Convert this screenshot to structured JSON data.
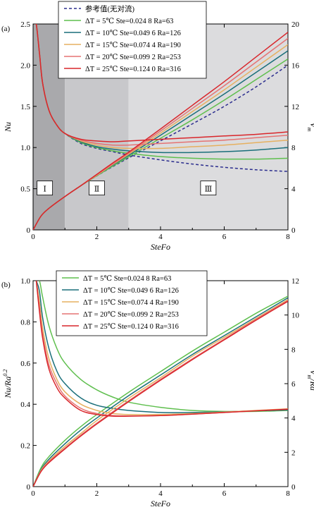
{
  "chart_data": [
    {
      "type": "line",
      "panel_label": "(a)",
      "xlabel": "SteFo",
      "ylabel": "Nu",
      "y2label": "V",
      "y2label_sub": "m",
      "xlim": [
        0,
        8
      ],
      "ylim": [
        0,
        2.5
      ],
      "y2lim": [
        0,
        20
      ],
      "x_ticks": [
        "0",
        "2",
        "4",
        "6",
        "8"
      ],
      "y_ticks": [
        "0",
        "0.5",
        "1.0",
        "1.5",
        "2.0",
        "2.5"
      ],
      "y2_ticks": [
        "0",
        "4",
        "8",
        "12",
        "16",
        "20"
      ],
      "regions": [
        {
          "label": "Ⅰ",
          "x_range": [
            0,
            1
          ],
          "color": "#a9a9ac"
        },
        {
          "label": "Ⅱ",
          "x_range": [
            1,
            3
          ],
          "color": "#c8c8cb"
        },
        {
          "label": "Ⅲ",
          "x_range": [
            3,
            8
          ],
          "color": "#dcdcde"
        }
      ],
      "legend_placement": "top-center",
      "series": [
        {
          "name": "参考值(无对流)",
          "color": "#2b2d8e",
          "dashed": true,
          "nu": {
            "x": [
              0.05,
              0.1,
              0.2,
              0.3,
              0.5,
              0.75,
              1,
              1.5,
              2,
              2.5,
              3,
              4,
              5,
              6,
              7,
              8
            ],
            "y": [
              2.5,
              2.5,
              2.15,
              1.78,
              1.45,
              1.27,
              1.17,
              1.05,
              0.99,
              0.95,
              0.91,
              0.85,
              0.8,
              0.76,
              0.73,
              0.71
            ]
          },
          "vm": {
            "x": [
              0,
              0.25,
              0.5,
              1,
              1.5,
              2,
              2.5,
              3,
              4,
              5,
              6,
              7,
              8
            ],
            "y": [
              0,
              1.35,
              2.1,
              3.25,
              4.3,
              5.25,
              6.15,
              7.0,
              8.65,
              10.3,
              12.0,
              13.9,
              16.0
            ]
          }
        },
        {
          "name": "ΔT = 5℃   Ste=0.024 8   Ra=63",
          "color": "#5fbf4e",
          "dashed": false,
          "nu": {
            "x": [
              0.05,
              0.1,
              0.2,
              0.3,
              0.5,
              0.75,
              1,
              1.5,
              2,
              2.5,
              3,
              4,
              5,
              6,
              7,
              8
            ],
            "y": [
              2.5,
              2.5,
              2.15,
              1.78,
              1.45,
              1.27,
              1.17,
              1.06,
              1.0,
              0.96,
              0.93,
              0.89,
              0.87,
              0.86,
              0.86,
              0.87
            ]
          },
          "vm": {
            "x": [
              0,
              0.25,
              0.5,
              1,
              1.5,
              2,
              2.5,
              3,
              4,
              5,
              6,
              7,
              8
            ],
            "y": [
              0,
              1.35,
              2.1,
              3.25,
              4.3,
              5.25,
              6.2,
              7.1,
              8.9,
              10.7,
              12.6,
              14.6,
              16.6
            ]
          }
        },
        {
          "name": "ΔT = 10℃   Ste=0.049 6   Ra=126",
          "color": "#1a6f7a",
          "dashed": false,
          "nu": {
            "x": [
              0.05,
              0.1,
              0.2,
              0.3,
              0.5,
              0.75,
              1,
              1.5,
              2,
              2.5,
              3,
              4,
              5,
              6,
              7,
              8
            ],
            "y": [
              2.5,
              2.5,
              2.15,
              1.78,
              1.45,
              1.27,
              1.17,
              1.07,
              1.01,
              0.98,
              0.96,
              0.94,
              0.94,
              0.95,
              0.97,
              1.0
            ]
          },
          "vm": {
            "x": [
              0,
              0.25,
              0.5,
              1,
              1.5,
              2,
              2.5,
              3,
              4,
              5,
              6,
              7,
              8
            ],
            "y": [
              0,
              1.35,
              2.1,
              3.25,
              4.3,
              5.3,
              6.3,
              7.25,
              9.2,
              11.2,
              13.2,
              15.3,
              17.4
            ]
          }
        },
        {
          "name": "ΔT = 15℃   Ste=0.074 4   Ra=190",
          "color": "#e6b060",
          "dashed": false,
          "nu": {
            "x": [
              0.05,
              0.1,
              0.2,
              0.3,
              0.5,
              0.75,
              1,
              1.5,
              2,
              2.5,
              3,
              4,
              5,
              6,
              7,
              8
            ],
            "y": [
              2.5,
              2.5,
              2.15,
              1.78,
              1.45,
              1.27,
              1.17,
              1.08,
              1.03,
              1.0,
              0.99,
              0.99,
              1.01,
              1.03,
              1.06,
              1.09
            ]
          },
          "vm": {
            "x": [
              0,
              0.25,
              0.5,
              1,
              1.5,
              2,
              2.5,
              3,
              4,
              5,
              6,
              7,
              8
            ],
            "y": [
              0,
              1.35,
              2.1,
              3.25,
              4.3,
              5.3,
              6.35,
              7.35,
              9.4,
              11.5,
              13.6,
              15.8,
              18.0
            ]
          }
        },
        {
          "name": "ΔT = 20℃   Ste=0.099 2   Ra=253",
          "color": "#e57373",
          "dashed": false,
          "nu": {
            "x": [
              0.05,
              0.1,
              0.2,
              0.3,
              0.5,
              0.75,
              1,
              1.5,
              2,
              2.5,
              3,
              4,
              5,
              6,
              7,
              8
            ],
            "y": [
              2.5,
              2.5,
              2.15,
              1.78,
              1.45,
              1.27,
              1.17,
              1.09,
              1.05,
              1.03,
              1.03,
              1.05,
              1.07,
              1.09,
              1.12,
              1.15
            ]
          },
          "vm": {
            "x": [
              0,
              0.25,
              0.5,
              1,
              1.5,
              2,
              2.5,
              3,
              4,
              5,
              6,
              7,
              8
            ],
            "y": [
              0,
              1.35,
              2.1,
              3.25,
              4.3,
              5.35,
              6.4,
              7.45,
              9.6,
              11.8,
              14.0,
              16.3,
              18.6
            ]
          }
        },
        {
          "name": "ΔT = 25℃   Ste=0.124 0   Ra=316",
          "color": "#d9262b",
          "dashed": false,
          "nu": {
            "x": [
              0.05,
              0.1,
              0.2,
              0.3,
              0.5,
              0.75,
              1,
              1.5,
              2,
              2.5,
              3,
              4,
              5,
              6,
              7,
              8
            ],
            "y": [
              2.5,
              2.5,
              2.15,
              1.78,
              1.45,
              1.27,
              1.17,
              1.1,
              1.08,
              1.07,
              1.08,
              1.1,
              1.12,
              1.14,
              1.16,
              1.19
            ]
          },
          "vm": {
            "x": [
              0,
              0.25,
              0.5,
              1,
              1.5,
              2,
              2.5,
              3,
              4,
              5,
              6,
              7,
              8
            ],
            "y": [
              0,
              1.35,
              2.1,
              3.25,
              4.3,
              5.4,
              6.5,
              7.55,
              9.8,
              12.1,
              14.4,
              16.8,
              19.2
            ]
          }
        }
      ]
    },
    {
      "type": "line",
      "panel_label": "(b)",
      "xlabel": "SteFo",
      "ylabel": "Nu/Ra",
      "ylabel_sup": "0.2",
      "y2label": "V",
      "y2label_sub": "m",
      "y2label_tail": "/Ra",
      "y2label_sup": "0.1",
      "xlim": [
        0,
        8
      ],
      "ylim": [
        0,
        1.0
      ],
      "y2lim": [
        0,
        12
      ],
      "x_ticks": [
        "0",
        "2",
        "4",
        "6",
        "8"
      ],
      "y_ticks": [
        "0",
        "0.2",
        "0.4",
        "0.6",
        "0.8",
        "1.0"
      ],
      "y2_ticks": [
        "0",
        "2",
        "4",
        "6",
        "8",
        "10",
        "12"
      ],
      "legend_placement": "top-center",
      "series": [
        {
          "name": "ΔT = 5℃   Ste=0.024 8   Ra=63",
          "color": "#5fbf4e",
          "nu": {
            "x": [
              0.1,
              0.2,
              0.3,
              0.5,
              0.75,
              1,
              1.5,
              2,
              2.5,
              3,
              4,
              5,
              6,
              7,
              8
            ],
            "y": [
              1.0,
              1.0,
              0.92,
              0.78,
              0.67,
              0.6,
              0.52,
              0.47,
              0.435,
              0.41,
              0.385,
              0.37,
              0.365,
              0.365,
              0.37
            ]
          },
          "vm": {
            "x": [
              0,
              0.25,
              0.5,
              1,
              1.5,
              2,
              3,
              4,
              5,
              6,
              7,
              8
            ],
            "y": [
              0,
              1.1,
              1.75,
              2.7,
              3.5,
              4.2,
              5.5,
              6.7,
              7.9,
              9.0,
              10.1,
              11.1
            ]
          }
        },
        {
          "name": "ΔT = 10℃   Ste=0.049 6   Ra=126",
          "color": "#1a6f7a",
          "nu": {
            "x": [
              0.1,
              0.2,
              0.3,
              0.5,
              0.75,
              1,
              1.5,
              2,
              2.5,
              3,
              4,
              5,
              6,
              7,
              8
            ],
            "y": [
              1.0,
              0.95,
              0.82,
              0.67,
              0.56,
              0.5,
              0.43,
              0.395,
              0.38,
              0.37,
              0.36,
              0.36,
              0.363,
              0.368,
              0.372
            ]
          },
          "vm": {
            "x": [
              0,
              0.25,
              0.5,
              1,
              1.5,
              2,
              3,
              4,
              5,
              6,
              7,
              8
            ],
            "y": [
              0,
              1.0,
              1.6,
              2.5,
              3.3,
              4.0,
              5.3,
              6.5,
              7.7,
              8.8,
              9.9,
              11.0
            ]
          }
        },
        {
          "name": "ΔT = 15℃   Ste=0.074 4   Ra=190",
          "color": "#e6b060",
          "nu": {
            "x": [
              0.1,
              0.2,
              0.3,
              0.5,
              0.75,
              1,
              1.5,
              2,
              2.5,
              3,
              4,
              5,
              6,
              7,
              8
            ],
            "y": [
              1.0,
              0.9,
              0.77,
              0.62,
              0.52,
              0.46,
              0.4,
              0.37,
              0.355,
              0.35,
              0.35,
              0.355,
              0.362,
              0.37,
              0.378
            ]
          },
          "vm": {
            "x": [
              0,
              0.25,
              0.5,
              1,
              1.5,
              2,
              3,
              4,
              5,
              6,
              7,
              8
            ],
            "y": [
              0,
              0.95,
              1.5,
              2.35,
              3.1,
              3.85,
              5.15,
              6.35,
              7.6,
              8.7,
              9.8,
              10.9
            ]
          }
        },
        {
          "name": "ΔT = 20℃   Ste=0.099 2   Ra=253",
          "color": "#e57373",
          "nu": {
            "x": [
              0.1,
              0.2,
              0.3,
              0.5,
              0.75,
              1,
              1.5,
              2,
              2.5,
              3,
              4,
              5,
              6,
              7,
              8
            ],
            "y": [
              1.0,
              0.87,
              0.74,
              0.59,
              0.5,
              0.44,
              0.38,
              0.355,
              0.345,
              0.343,
              0.345,
              0.352,
              0.36,
              0.368,
              0.376
            ]
          },
          "vm": {
            "x": [
              0,
              0.25,
              0.5,
              1,
              1.5,
              2,
              3,
              4,
              5,
              6,
              7,
              8
            ],
            "y": [
              0,
              0.9,
              1.45,
              2.25,
              3.0,
              3.7,
              5.0,
              6.25,
              7.45,
              8.6,
              9.75,
              10.85
            ]
          }
        },
        {
          "name": "ΔT = 25℃   Ste=0.124 0   Ra=316",
          "color": "#d9262b",
          "nu": {
            "x": [
              0.1,
              0.2,
              0.3,
              0.5,
              0.75,
              1,
              1.5,
              2,
              2.5,
              3,
              4,
              5,
              6,
              7,
              8
            ],
            "y": [
              1.0,
              0.85,
              0.72,
              0.57,
              0.48,
              0.43,
              0.37,
              0.35,
              0.342,
              0.342,
              0.345,
              0.352,
              0.36,
              0.368,
              0.376
            ]
          },
          "vm": {
            "x": [
              0,
              0.25,
              0.5,
              1,
              1.5,
              2,
              3,
              4,
              5,
              6,
              7,
              8
            ],
            "y": [
              0,
              0.88,
              1.4,
              2.2,
              2.95,
              3.65,
              4.95,
              6.2,
              7.4,
              8.55,
              9.7,
              10.8
            ]
          }
        }
      ]
    }
  ]
}
